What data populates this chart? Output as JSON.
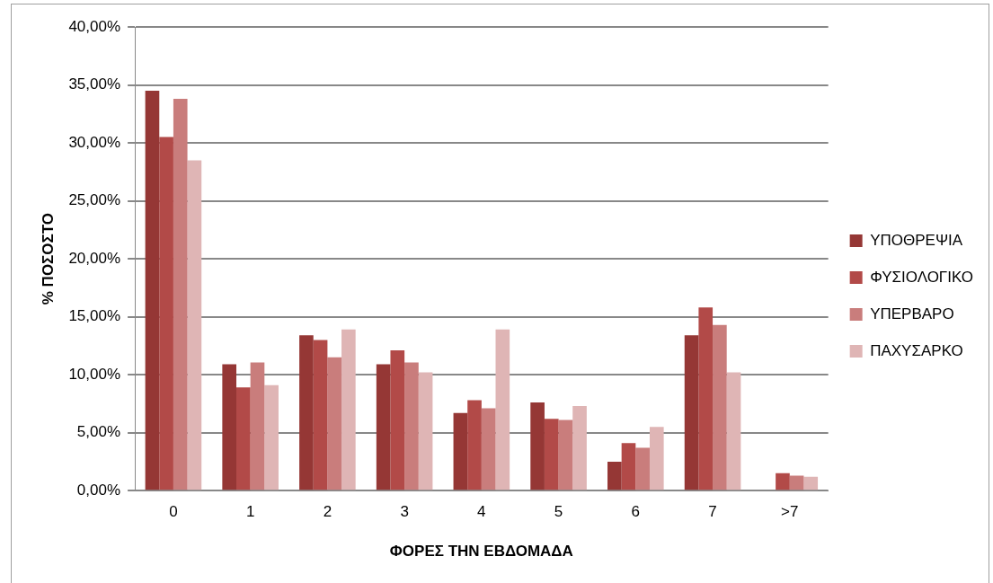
{
  "chart_data": {
    "type": "bar",
    "xlabel": "ΦΟΡΕΣ ΤΗΝ ΕΒΔΟΜΑΔΑ",
    "ylabel": "% ΠΟΣΟΣΤΟ",
    "categories": [
      "0",
      "1",
      "2",
      "3",
      "4",
      "5",
      "6",
      "7",
      ">7"
    ],
    "series": [
      {
        "name": "ΥΠΟΘΡΕΨΙΑ",
        "color": "#953735",
        "values": [
          34.5,
          10.9,
          13.4,
          10.9,
          6.7,
          7.6,
          2.5,
          13.4,
          0
        ]
      },
      {
        "name": "ΦΥΣΙΟΛΟΓΙΚΟ",
        "color": "#b24a48",
        "values": [
          30.5,
          8.9,
          13.0,
          12.1,
          7.8,
          6.2,
          4.1,
          15.8,
          1.5
        ]
      },
      {
        "name": "ΥΠΕΡΒΑΡΟ",
        "color": "#c97d7c",
        "values": [
          33.8,
          11.05,
          11.5,
          11.05,
          7.1,
          6.1,
          3.7,
          14.3,
          1.3
        ]
      },
      {
        "name": "ΠΑΧΥΣΑΡΚΟ",
        "color": "#dfb5b5",
        "values": [
          28.5,
          9.1,
          13.9,
          10.2,
          13.9,
          7.3,
          5.5,
          10.2,
          1.2
        ]
      }
    ],
    "ylim": [
      0,
      40
    ],
    "yticks": [
      {
        "value": 0,
        "label": "0,00%"
      },
      {
        "value": 5,
        "label": "5,00%"
      },
      {
        "value": 10,
        "label": "10,00%"
      },
      {
        "value": 15,
        "label": "15,00%"
      },
      {
        "value": 20,
        "label": "20,00%"
      },
      {
        "value": 25,
        "label": "25,00%"
      },
      {
        "value": 30,
        "label": "30,00%"
      },
      {
        "value": 35,
        "label": "35,00%"
      },
      {
        "value": 40,
        "label": "40,00%"
      }
    ],
    "grid": "y",
    "legend": "right"
  }
}
